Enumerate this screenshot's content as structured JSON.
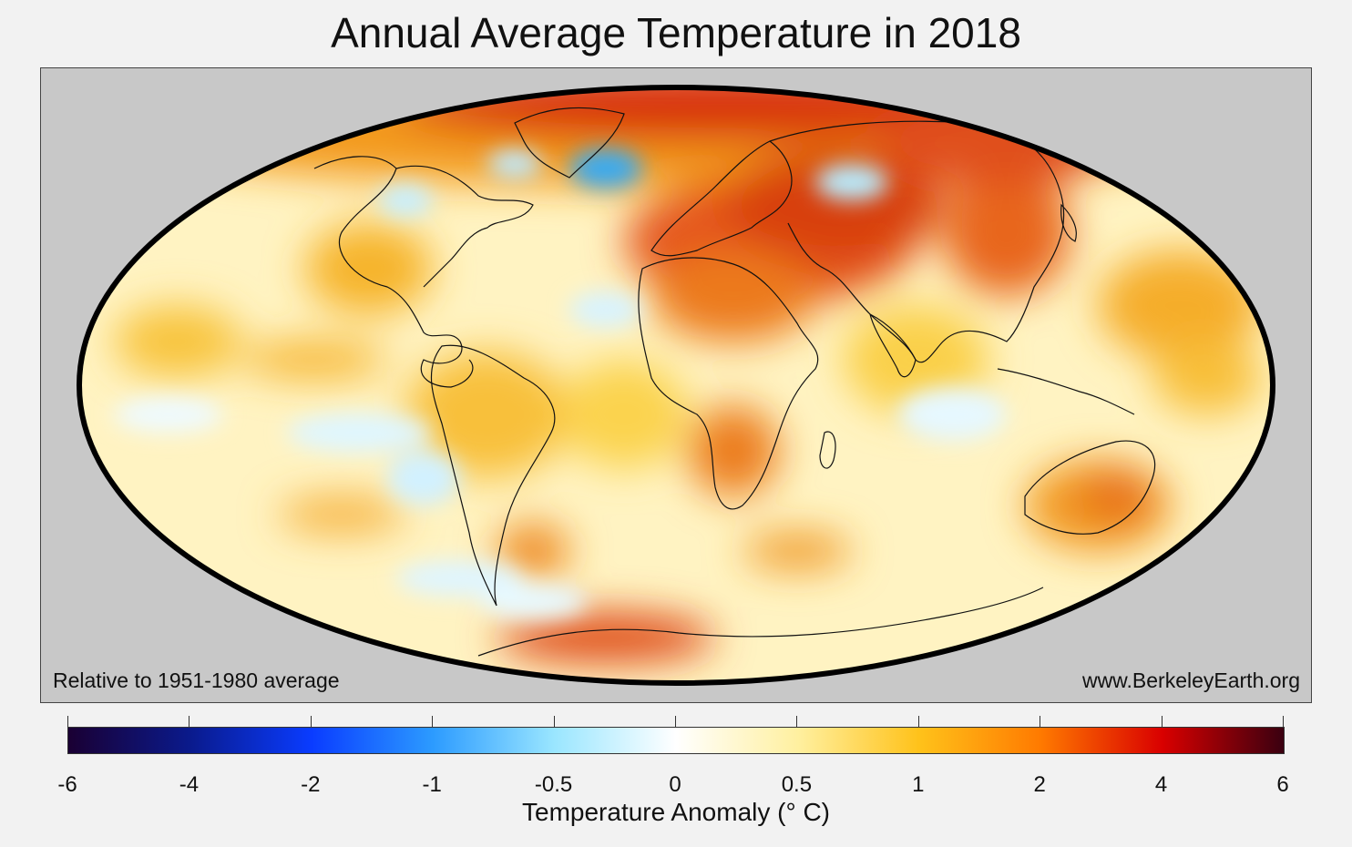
{
  "title": "Annual Average Temperature in 2018",
  "map": {
    "note_left": "Relative to 1951-1980 average",
    "note_right": "www.BerkeleyEarth.org",
    "projection": "Mollweide",
    "background_color": "#c8c8c8"
  },
  "colorbar": {
    "label": "Temperature Anomaly (° C)",
    "ticks": [
      "-6",
      "-4",
      "-2",
      "-1",
      "-0.5",
      "0",
      "0.5",
      "1",
      "2",
      "4",
      "6"
    ],
    "colors": [
      "#1a0033",
      "#0a1a8c",
      "#0a3cff",
      "#2c9bff",
      "#9ae6ff",
      "#ffffff",
      "#fff0a0",
      "#ffc21a",
      "#ff7a00",
      "#d90000",
      "#3a0010"
    ]
  }
}
